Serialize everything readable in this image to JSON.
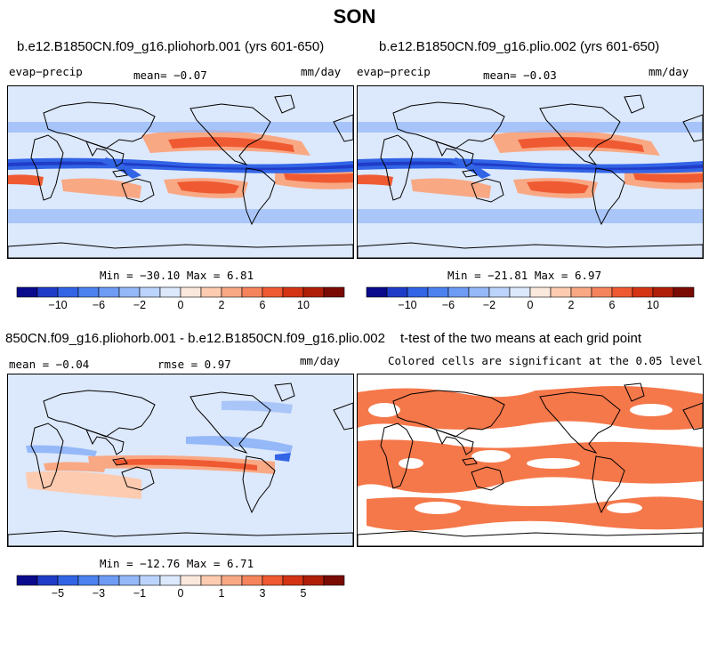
{
  "title": "SON",
  "panels": [
    {
      "id": "p1",
      "title": "b.e12.B1850CN.f09_g16.pliohorb.001 (yrs 601-650)",
      "left_label": "evap−precip",
      "mid_label": "mean=  −0.07",
      "right_label": "mm/day",
      "minmax": "Min = −30.10 Max =   6.81",
      "colorbar_ticks": [
        "−10",
        "−6",
        "−2",
        "0",
        "2",
        "6",
        "10"
      ]
    },
    {
      "id": "p2",
      "title": "b.e12.B1850CN.f09_g16.plio.002 (yrs 601-650)",
      "left_label": "evap−precip",
      "mid_label": "mean=  −0.03",
      "right_label": "mm/day",
      "minmax": "Min = −21.81 Max =   6.97",
      "colorbar_ticks": [
        "−10",
        "−6",
        "−2",
        "0",
        "2",
        "6",
        "10"
      ]
    },
    {
      "id": "p3",
      "title": "850CN.f09_g16.pliohorb.001 - b.e12.B1850CN.f09_g16.plio.002",
      "left_label": "mean =  −0.04",
      "mid_label": "rmse =   0.97",
      "right_label": "mm/day",
      "minmax": "Min = −12.76 Max =   6.71",
      "colorbar_ticks": [
        "−5",
        "−3",
        "−1",
        "0",
        "1",
        "3",
        "5"
      ]
    },
    {
      "id": "p4",
      "title": "t-test of the two means at each grid point",
      "subtitle": "Colored cells are significant at the 0.05 level"
    }
  ],
  "chart_data": [
    {
      "type": "heatmap",
      "title": "b.e12.B1850CN.f09_g16.pliohorb.001 (yrs 601-650)",
      "variable": "evap−precip",
      "units": "mm/day",
      "mean": -0.07,
      "min": -30.1,
      "max": 6.81,
      "colorbar_levels": [
        -12,
        -10,
        -8,
        -6,
        -4,
        -2,
        -1,
        0,
        1,
        2,
        4,
        6,
        8,
        10,
        12
      ],
      "colorbar_colors": [
        "#0a0a8c",
        "#1f3cc8",
        "#3264e6",
        "#4b82f0",
        "#6e9cf5",
        "#94b8f8",
        "#bcd4fb",
        "#dce8fb",
        "#fbe8dc",
        "#fccbb0",
        "#f9a884",
        "#f5845c",
        "#ef5a32",
        "#d43414",
        "#b01e08",
        "#7a0a04"
      ],
      "colorbar_ticks": [
        -10,
        -6,
        -2,
        0,
        2,
        6,
        10
      ]
    },
    {
      "type": "heatmap",
      "title": "b.e12.B1850CN.f09_g16.plio.002 (yrs 601-650)",
      "variable": "evap−precip",
      "units": "mm/day",
      "mean": -0.03,
      "min": -21.81,
      "max": 6.97,
      "colorbar_ticks": [
        -10,
        -6,
        -2,
        0,
        2,
        6,
        10
      ]
    },
    {
      "type": "heatmap",
      "title": "850CN.f09_g16.pliohorb.001 - b.e12.B1850CN.f09_g16.plio.002",
      "units": "mm/day",
      "mean": -0.04,
      "rmse": 0.97,
      "min": -12.76,
      "max": 6.71,
      "colorbar_levels": [
        -6,
        -5,
        -4,
        -3,
        -2,
        -1,
        -0.5,
        0,
        0.5,
        1,
        2,
        3,
        4,
        5,
        6
      ],
      "colorbar_ticks": [
        -5,
        -3,
        -1,
        0,
        1,
        3,
        5
      ]
    },
    {
      "type": "heatmap",
      "title": "t-test of the two means at each grid point",
      "subtitle": "Colored cells are significant at the 0.05 level",
      "significant_color": "#f5784a"
    }
  ],
  "colors": {
    "ocean_light": "#dce8fb",
    "blue_mid": "#94b8f8",
    "blue_strong": "#3264e6",
    "blue_dark": "#1f3cc8",
    "orange_light": "#fccbb0",
    "orange_mid": "#f9a884",
    "orange_strong": "#ef5a32",
    "signif": "#f5784a"
  }
}
